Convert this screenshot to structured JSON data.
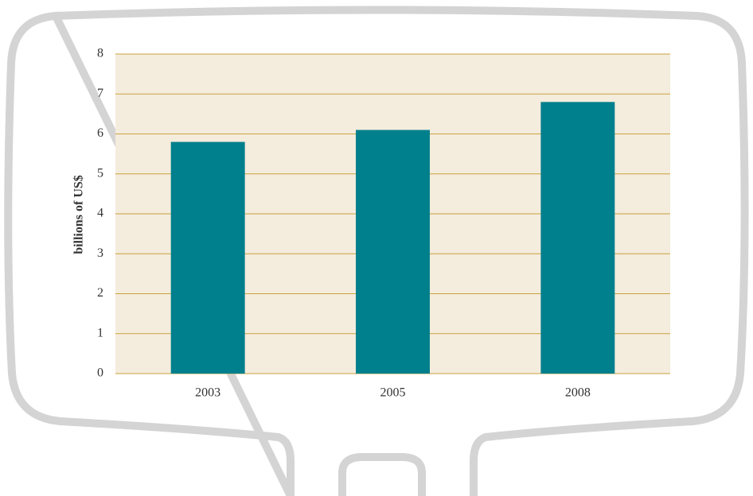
{
  "chart_data": {
    "type": "bar",
    "y_label": "billions of US$",
    "categories": [
      "2003",
      "2005",
      "2008"
    ],
    "values": [
      5.8,
      6.1,
      6.8
    ],
    "color": "#007f8c",
    "ylim": [
      0,
      8
    ],
    "yticks": [
      0,
      1,
      2,
      3,
      4,
      5,
      6,
      7,
      8
    ],
    "grid": true
  }
}
